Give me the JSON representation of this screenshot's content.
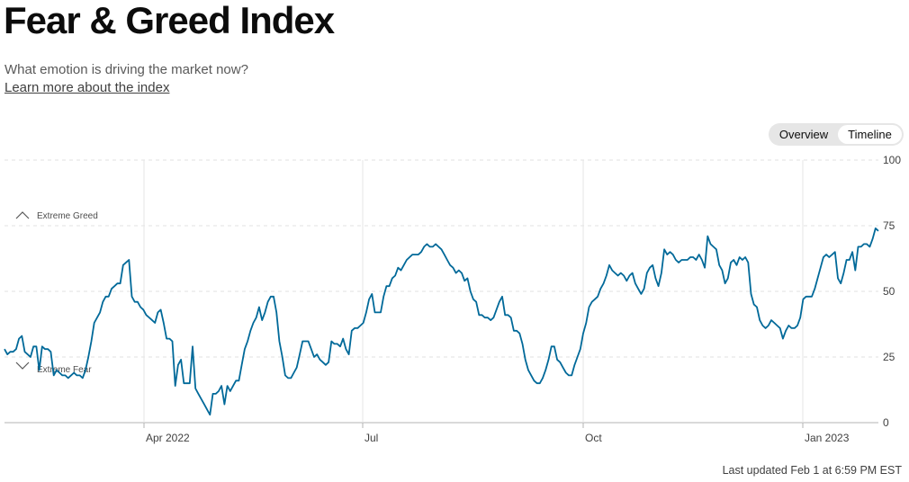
{
  "header": {
    "title": "Fear & Greed Index",
    "subtitle": "What emotion is driving the market now?",
    "learn_more": "Learn more about the index"
  },
  "toggle": {
    "overview_label": "Overview",
    "timeline_label": "Timeline",
    "active": "Timeline"
  },
  "footer": {
    "last_updated": "Last updated Feb 1 at 6:59 PM EST"
  },
  "chart_data": {
    "type": "line",
    "y_ticks": [
      "0",
      "25",
      "50",
      "75",
      "100"
    ],
    "x_ticks": [
      "Apr 2022",
      "Jul",
      "Oct",
      "Jan 2023"
    ],
    "ylim": [
      0,
      100
    ],
    "grid": true,
    "line_color": "#006999",
    "zone_labels": {
      "greed": "Extreme Greed",
      "fear": "Extreme Fear"
    },
    "series": [
      {
        "values": [
          28,
          26,
          27,
          27,
          28,
          32,
          33,
          27,
          26,
          25,
          29,
          29,
          20,
          29,
          28,
          28,
          27,
          18,
          20,
          19,
          18,
          18,
          17,
          18,
          19,
          18,
          18,
          17,
          20,
          25,
          31,
          38,
          40,
          42,
          46,
          48,
          48,
          51,
          52,
          53,
          53,
          60,
          61,
          62,
          48,
          46,
          46,
          44,
          43,
          41,
          40,
          39,
          38,
          42,
          43,
          38,
          32,
          32,
          31,
          14,
          22,
          24,
          15,
          15,
          15,
          29,
          13,
          11,
          9,
          7,
          5,
          3,
          11,
          11,
          12,
          14,
          7,
          14,
          12,
          14,
          16,
          16,
          22,
          28,
          31,
          35,
          38,
          40,
          44,
          39,
          42,
          46,
          48,
          48,
          42,
          31,
          25,
          18,
          17,
          17,
          19,
          21,
          26,
          31,
          31,
          31,
          28,
          25,
          26,
          24,
          23,
          22,
          23,
          31,
          30,
          30,
          29,
          32,
          28,
          26,
          35,
          36,
          36,
          37,
          38,
          42,
          47,
          49,
          42,
          42,
          42,
          48,
          52,
          52,
          55,
          56,
          59,
          58,
          60,
          62,
          63,
          64,
          64,
          64,
          65,
          67,
          68,
          67,
          67,
          68,
          67,
          66,
          64,
          62,
          60,
          59,
          57,
          58,
          57,
          54,
          55,
          50,
          47,
          46,
          41,
          41,
          40,
          40,
          39,
          40,
          43,
          46,
          48,
          41,
          41,
          40,
          35,
          35,
          34,
          30,
          24,
          20,
          18,
          16,
          15,
          15,
          17,
          20,
          24,
          29,
          29,
          24,
          23,
          21,
          19,
          18,
          18,
          22,
          25,
          28,
          34,
          38,
          44,
          46,
          47,
          48,
          51,
          53,
          56,
          60,
          58,
          57,
          56,
          57,
          56,
          54,
          56,
          57,
          53,
          51,
          49,
          51,
          57,
          59,
          60,
          55,
          52,
          57,
          66,
          64,
          65,
          64,
          62,
          61,
          62,
          62,
          62,
          63,
          63,
          62,
          64,
          62,
          59,
          71,
          68,
          67,
          66,
          60,
          58,
          53,
          55,
          61,
          62,
          60,
          63,
          62,
          63,
          61,
          49,
          45,
          44,
          39,
          37,
          36,
          37,
          39,
          38,
          37,
          36,
          32,
          35,
          37,
          36,
          36,
          37,
          40,
          47,
          48,
          48,
          48,
          51,
          55,
          59,
          63,
          64,
          63,
          64,
          65,
          55,
          53,
          57,
          62,
          62,
          65,
          58,
          67,
          67,
          68,
          68,
          67,
          70,
          74,
          73
        ]
      }
    ]
  }
}
